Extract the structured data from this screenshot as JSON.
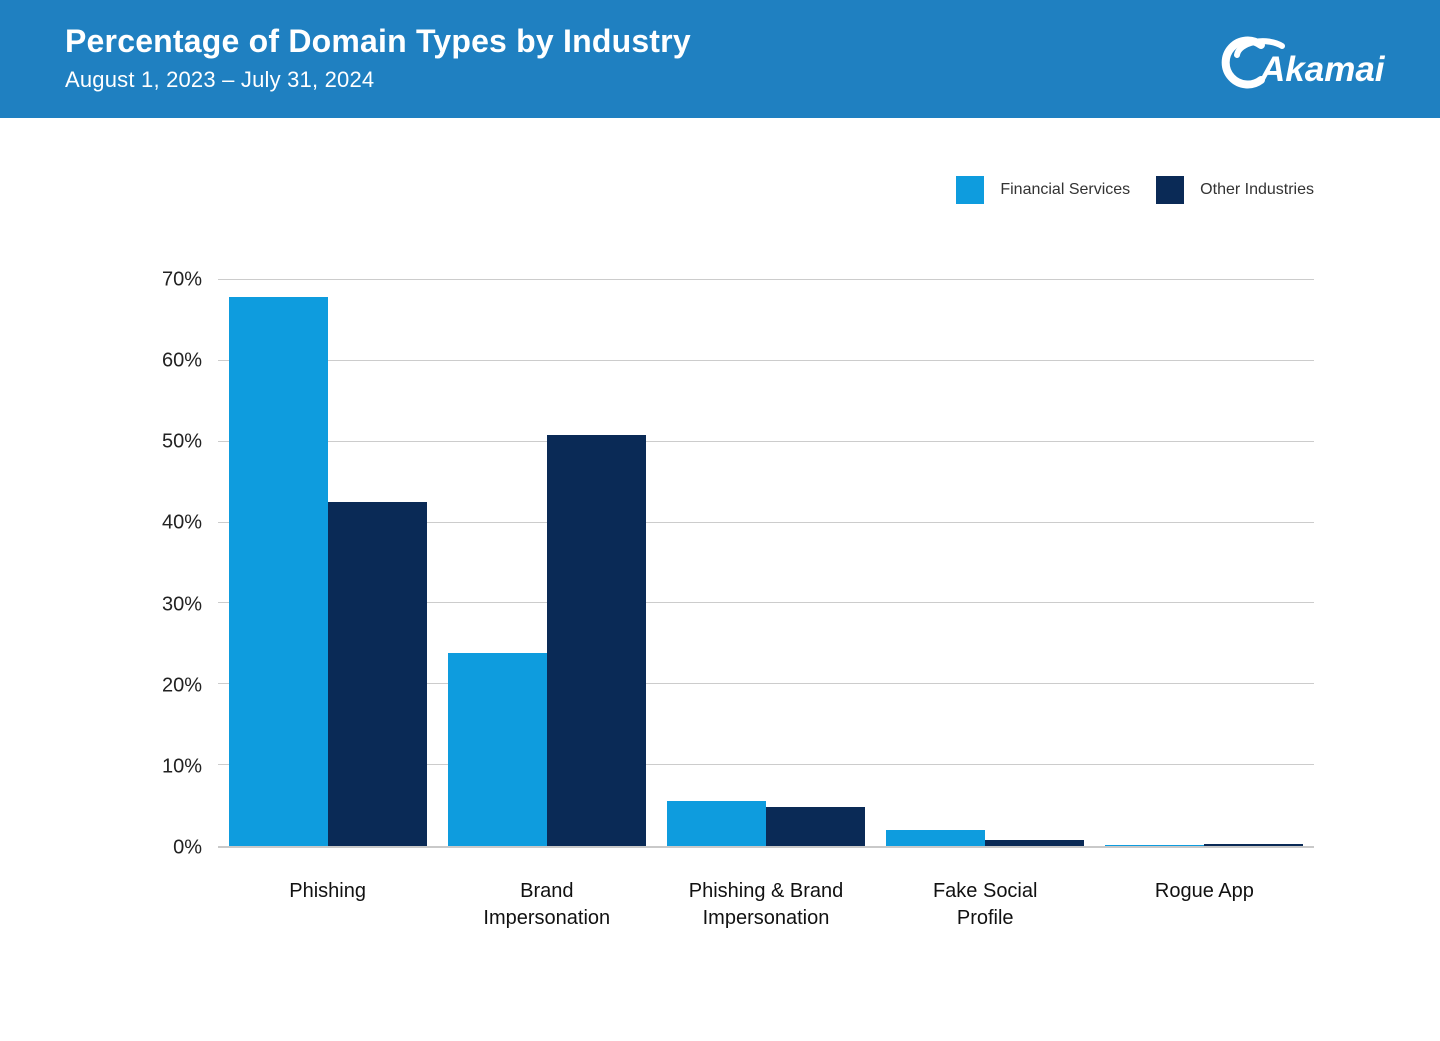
{
  "header": {
    "title": "Percentage of Domain Types by Industry",
    "subtitle": "August 1, 2023 – July 31, 2024",
    "brand": "Akamai",
    "background_color": "#1F80C1"
  },
  "legend": [
    {
      "label": "Financial Services",
      "color": "#0E9CDE"
    },
    {
      "label": "Other Industries",
      "color": "#0A2A56"
    }
  ],
  "chart_data": {
    "type": "bar",
    "title": "Percentage of Domain Types by Industry",
    "subtitle": "August 1, 2023 – July 31, 2024",
    "categories": [
      "Phishing",
      "Brand\nImpersonation",
      "Phishing & Brand\nImpersonation",
      "Fake Social\nProfile",
      "Rogue App"
    ],
    "series": [
      {
        "name": "Financial Services",
        "color": "#0E9CDE",
        "values": [
          67.7,
          23.8,
          5.5,
          2.0,
          0.1
        ]
      },
      {
        "name": "Other Industries",
        "color": "#0A2A56",
        "values": [
          42.4,
          50.7,
          4.8,
          0.7,
          0.2
        ]
      }
    ],
    "xlabel": "",
    "ylabel": "",
    "ylim": [
      0,
      70
    ],
    "ytick_step": 10,
    "ytick_suffix": "%",
    "grid": true,
    "legend_position": "top-right"
  }
}
